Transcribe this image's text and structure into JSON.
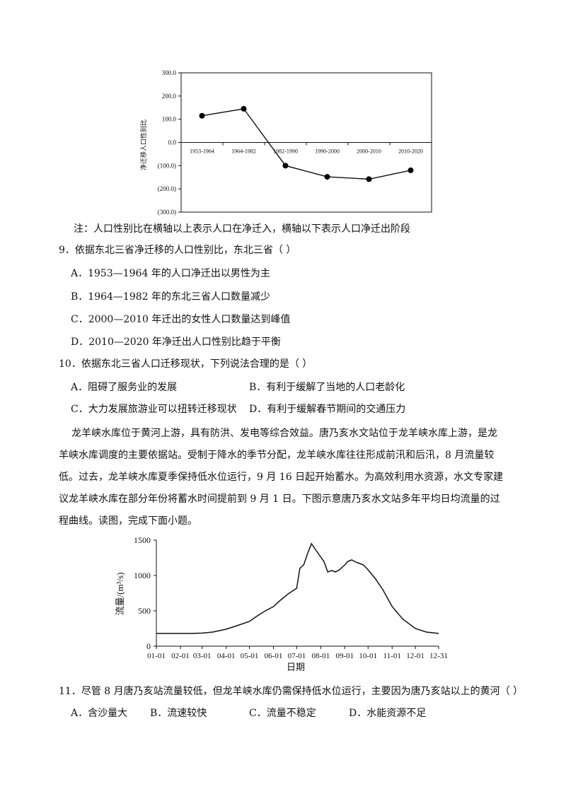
{
  "chart1": {
    "chart_data": {
      "type": "line",
      "categories": [
        "1953-1964",
        "1964-1982",
        "1982-1990",
        "1990-2000",
        "2000-2010",
        "2010-2020"
      ],
      "values": [
        115,
        145,
        -100,
        -148,
        -158,
        -120
      ],
      "ylabel": "净迁移人口性别比",
      "ylim": [
        -300,
        300
      ],
      "yticks": [
        "300.0",
        "200.0",
        "100.0",
        "0.0",
        "(100.0)",
        "(200.0)",
        "(300.0)"
      ],
      "grid": false
    },
    "note": "注：人口性别比在横轴以上表示人口在净迁入，横轴以下表示人口净迁出阶段"
  },
  "q9": {
    "stem": "9．依据东北三省净迁移的人口性别比，东北三省（    ）",
    "options": [
      "A．1953—1964 年的人口净迁出以男性为主",
      "B．1964—1982 年的东北三省人口数量减少",
      "C．2000—2010 年迁出的女性人口数量达到峰值",
      "D．2010—2020 年净迁出人口性别比趋于平衡"
    ]
  },
  "q10": {
    "stem": "10．依据东北三省人口迁移现状，下列说法合理的是（    ）",
    "options": [
      "A．阻碍了服务业的发展",
      "B．有利于缓解了当地的人口老龄化",
      "C．大力发展旅游业可以扭转迁移现状",
      "D．有利于缓解春节期间的交通压力"
    ]
  },
  "passage": "龙羊峡水库位于黄河上游，具有防洪、发电等综合效益。唐乃亥水文站位于龙羊峡水库上游，是龙羊峡水库调度的主要依据站。受制于降水的季节分配，龙羊峡水库往往形成前汛和后汛，8 月流量较低。过去，龙羊峡水库夏季保持低水位运行，9 月 16 日起开始蓄水。为高效利用水资源，水文专家建议龙羊峡水库在部分年份将蓄水时间提前到 9 月 1 日。下图示意唐乃亥水文站多年平均日均流量的过程曲线。读图，完成下面小题。",
  "chart2": {
    "chart_data": {
      "type": "line",
      "x": [
        "01-01",
        "01-15",
        "02-01",
        "02-15",
        "03-01",
        "03-15",
        "04-01",
        "04-15",
        "05-01",
        "05-10",
        "05-20",
        "06-01",
        "06-10",
        "06-20",
        "07-01",
        "07-05",
        "07-10",
        "07-15",
        "07-20",
        "07-25",
        "08-01",
        "08-05",
        "08-10",
        "08-15",
        "08-20",
        "08-25",
        "09-01",
        "09-05",
        "09-10",
        "09-15",
        "09-20",
        "09-25",
        "10-01",
        "10-10",
        "10-20",
        "11-01",
        "11-15",
        "12-01",
        "12-15",
        "12-31"
      ],
      "values": [
        180,
        180,
        180,
        180,
        185,
        200,
        240,
        290,
        350,
        420,
        490,
        560,
        650,
        740,
        820,
        1100,
        1150,
        1310,
        1450,
        1370,
        1260,
        1200,
        1050,
        1070,
        1050,
        1080,
        1150,
        1200,
        1220,
        1190,
        1170,
        1150,
        1080,
        960,
        800,
        560,
        380,
        250,
        200,
        180
      ],
      "ylabel": "流量/(m³/s)",
      "xlabel": "日期",
      "ylim": [
        0,
        1500
      ],
      "yticks": [
        "1500",
        "1000",
        "500",
        "0"
      ],
      "xticks": [
        "01-01",
        "02-01",
        "03-01",
        "04-01",
        "05-01",
        "06-01",
        "07-01",
        "08-01",
        "09-01",
        "10-01",
        "11-01",
        "12-01",
        "12-31"
      ],
      "grid": false
    }
  },
  "q11": {
    "stem": "11．尽管 8 月唐乃亥站流量较低，但龙羊峡水库仍需保持低水位运行，主要因为唐乃亥站以上的黄河（    ）",
    "options": [
      "A．含沙量大",
      "B．流速较快",
      "C．流量不稳定",
      "D．水能资源不足"
    ]
  }
}
